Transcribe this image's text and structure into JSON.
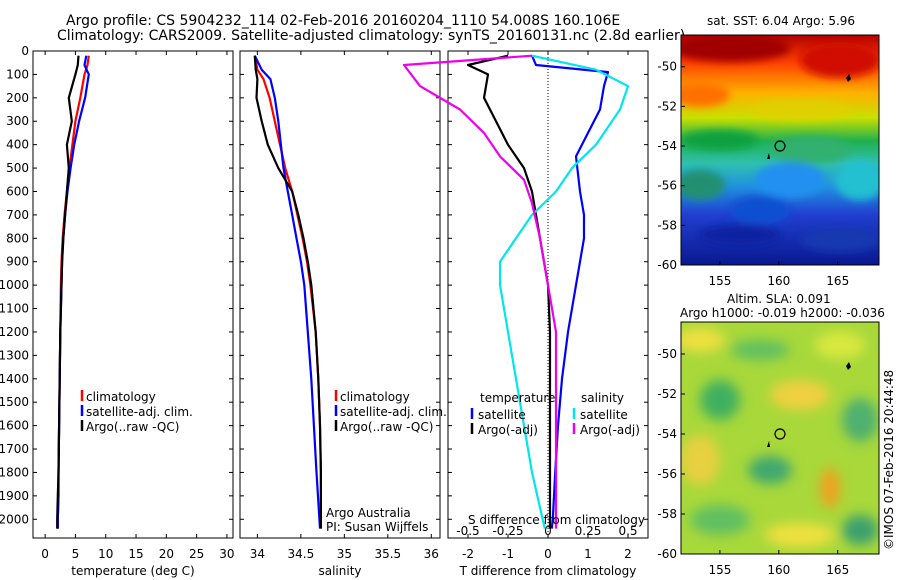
{
  "header": {
    "line1": "Argo profile: CS 5904232_114 02-Feb-2016 20160204_1110 54.008S 160.106E",
    "line2": "Climatology: CARS2009. Satellite-adjusted climatology: synTS_20160131.nc (2.8d earlier)"
  },
  "colors": {
    "climatology": "#ff0000",
    "satellite": "#0000ff",
    "argo": "#000000",
    "satellite_salinity": "#00e5ee",
    "argo_salinity_adj": "#ee00ee"
  },
  "chart_data": [
    {
      "type": "line",
      "xlabel": "temperature (deg C)",
      "xlim": [
        -2,
        31
      ],
      "xticks": [
        0,
        5,
        10,
        15,
        20,
        25,
        30
      ],
      "ylim": [
        0,
        2080
      ],
      "yticks": [
        0,
        100,
        200,
        300,
        400,
        500,
        600,
        700,
        800,
        900,
        1000,
        1100,
        1200,
        1300,
        1400,
        1500,
        1600,
        1700,
        1800,
        1900,
        2000
      ],
      "legend": [
        "climatology",
        "satellite-adj. clim.",
        "Argo(..raw -QC)"
      ],
      "series": [
        {
          "name": "climatology",
          "color": "#ff0000",
          "x": [
            7.2,
            7.0,
            6.5,
            5.8,
            5.0,
            4.5,
            4.0,
            3.6,
            3.2,
            2.9,
            2.7,
            2.6,
            2.5,
            2.4,
            2.3,
            2.2,
            2.2,
            2.1,
            2.1
          ],
          "y": [
            20,
            60,
            100,
            200,
            300,
            400,
            500,
            600,
            700,
            800,
            900,
            1000,
            1200,
            1400,
            1600,
            1800,
            1900,
            2000,
            2040
          ]
        },
        {
          "name": "satellite-adj. clim.",
          "color": "#0000ff",
          "x": [
            6.8,
            6.5,
            7.2,
            6.6,
            5.6,
            4.8,
            4.2,
            3.7,
            3.3,
            3.0,
            2.8,
            2.7,
            2.5,
            2.4,
            2.3,
            2.2,
            2.2,
            2.1,
            2.1
          ],
          "y": [
            20,
            60,
            100,
            200,
            300,
            400,
            500,
            600,
            700,
            800,
            900,
            1000,
            1200,
            1400,
            1600,
            1800,
            1900,
            2000,
            2040
          ]
        },
        {
          "name": "Argo(..raw -QC)",
          "color": "#000000",
          "x": [
            5.5,
            5.4,
            5.0,
            3.9,
            4.4,
            3.6,
            3.9,
            3.6,
            3.3,
            3.0,
            2.8,
            2.7,
            2.5,
            2.4,
            2.3,
            2.2,
            2.1,
            2.0,
            2.0
          ],
          "y": [
            20,
            60,
            100,
            200,
            300,
            400,
            500,
            600,
            700,
            800,
            900,
            1000,
            1200,
            1400,
            1600,
            1800,
            1900,
            2000,
            2040
          ]
        }
      ]
    },
    {
      "type": "line",
      "xlabel": "salinity",
      "xlim": [
        33.8,
        36.1
      ],
      "xticks": [
        34,
        34.5,
        35,
        35.5,
        36
      ],
      "ylim": [
        0,
        2080
      ],
      "legend": [
        "climatology",
        "satellite-adj. clim.",
        "Argo(..raw -QC)"
      ],
      "annotation": [
        "Argo Australia",
        "PI: Susan Wijffels"
      ],
      "series": [
        {
          "name": "climatology",
          "color": "#ff0000",
          "x": [
            33.97,
            34.0,
            34.07,
            34.14,
            34.2,
            34.26,
            34.32,
            34.4,
            34.46,
            34.52,
            34.57,
            34.61,
            34.67,
            34.7,
            34.72,
            34.73,
            34.73
          ],
          "y": [
            20,
            80,
            120,
            200,
            300,
            400,
            500,
            600,
            700,
            800,
            900,
            1000,
            1200,
            1400,
            1600,
            1800,
            2040
          ]
        },
        {
          "name": "satellite-adj. clim.",
          "color": "#0000ff",
          "x": [
            33.97,
            34.05,
            34.15,
            34.2,
            34.24,
            34.27,
            34.3,
            34.35,
            34.4,
            34.45,
            34.5,
            34.54,
            34.58,
            34.62,
            34.65,
            34.68,
            34.72
          ],
          "y": [
            20,
            80,
            120,
            200,
            300,
            400,
            500,
            600,
            700,
            800,
            900,
            1000,
            1200,
            1400,
            1600,
            1800,
            2040
          ]
        },
        {
          "name": "Argo(..raw -QC)",
          "color": "#000000",
          "x": [
            33.97,
            33.98,
            34.0,
            33.99,
            34.05,
            34.12,
            34.24,
            34.4,
            34.47,
            34.53,
            34.58,
            34.62,
            34.67,
            34.7,
            34.72,
            34.73,
            34.73
          ],
          "y": [
            20,
            80,
            120,
            200,
            300,
            400,
            500,
            600,
            700,
            800,
            900,
            1000,
            1200,
            1400,
            1600,
            1800,
            2040
          ]
        }
      ]
    },
    {
      "type": "line",
      "xlabel": "T difference from climatology",
      "xlabel_top": "S difference from climatology",
      "xlim": [
        -2.5,
        2.5
      ],
      "xticks": [
        -2,
        -1,
        0,
        1,
        2
      ],
      "xticks_top": [
        "-0.5",
        "-0.25",
        "0",
        "0.25",
        "0.5"
      ],
      "ylim": [
        0,
        2080
      ],
      "legend_headers": [
        "temperature",
        "salinity"
      ],
      "legend": [
        "satellite",
        "Argo(-adj)",
        "satellite",
        "Argo(-adj)"
      ],
      "series": [
        {
          "name": "temperature satellite",
          "color": "#0000ff",
          "x": [
            -0.4,
            -0.3,
            1.5,
            1.4,
            1.3,
            1.0,
            0.7,
            0.8,
            0.9,
            0.9,
            0.8,
            0.7,
            0.5,
            0.35,
            0.25,
            0.18,
            0.15,
            0.12,
            0.1,
            0.1
          ],
          "y": [
            20,
            60,
            90,
            150,
            250,
            350,
            450,
            600,
            700,
            800,
            900,
            1000,
            1200,
            1400,
            1600,
            1800,
            1900,
            2000,
            2030,
            2040
          ]
        },
        {
          "name": "temperature Argo(-adj)",
          "color": "#000000",
          "x": [
            -1.0,
            -2.0,
            -1.5,
            -1.6,
            -1.3,
            -1.0,
            -0.6,
            -0.4,
            -0.3,
            -0.2,
            -0.1,
            0.0,
            0.05,
            0.05,
            0.05,
            0.05,
            0.05,
            0.05
          ],
          "y": [
            20,
            60,
            100,
            200,
            300,
            400,
            500,
            600,
            700,
            800,
            900,
            1000,
            1200,
            1400,
            1600,
            1800,
            2000,
            2040
          ]
        },
        {
          "name": "salinity satellite",
          "color": "#00e5ee",
          "x": [
            -0.1,
            0.3,
            0.5,
            0.45,
            0.3,
            0.15,
            0.05,
            -0.1,
            -0.2,
            -0.3,
            -0.3,
            -0.25,
            -0.2,
            -0.15,
            -0.1,
            -0.05,
            -0.02
          ],
          "y": [
            20,
            80,
            150,
            250,
            400,
            500,
            600,
            700,
            800,
            900,
            1000,
            1200,
            1400,
            1600,
            1800,
            1950,
            2040
          ]
        },
        {
          "name": "salinity Argo(-adj)",
          "color": "#ee00ee",
          "x": [
            -0.1,
            -0.9,
            -0.8,
            -0.55,
            -0.4,
            -0.3,
            -0.15,
            -0.1,
            -0.05,
            0.0,
            0.05,
            0.05,
            0.05,
            0.05,
            0.05
          ],
          "y": [
            20,
            60,
            150,
            250,
            350,
            450,
            550,
            650,
            800,
            1000,
            1200,
            1400,
            1600,
            1800,
            2040
          ]
        }
      ]
    },
    {
      "type": "heatmap",
      "title": "sat. SST: 6.04 Argo: 5.96",
      "xticks": [
        155,
        160,
        165
      ],
      "yticks": [
        -50,
        -52,
        -54,
        -56,
        -58,
        -60
      ],
      "ylim": [
        -60,
        -48.4
      ],
      "xlim": [
        151.7,
        168.5
      ],
      "marker": {
        "lon": 160.1,
        "lat": -54.0
      }
    },
    {
      "type": "heatmap",
      "title": "Altim. SLA: 0.091",
      "subtitle": "Argo h1000: -0.019 h2000: -0.036",
      "xticks": [
        155,
        160,
        165
      ],
      "yticks": [
        -50,
        -52,
        -54,
        -56,
        -58,
        -60
      ],
      "ylim": [
        -60,
        -48.4
      ],
      "xlim": [
        151.7,
        168.5
      ],
      "marker": {
        "lon": 160.1,
        "lat": -54.0
      }
    }
  ],
  "side_text": "©IMOS 07-Feb-2016 20:44:48"
}
